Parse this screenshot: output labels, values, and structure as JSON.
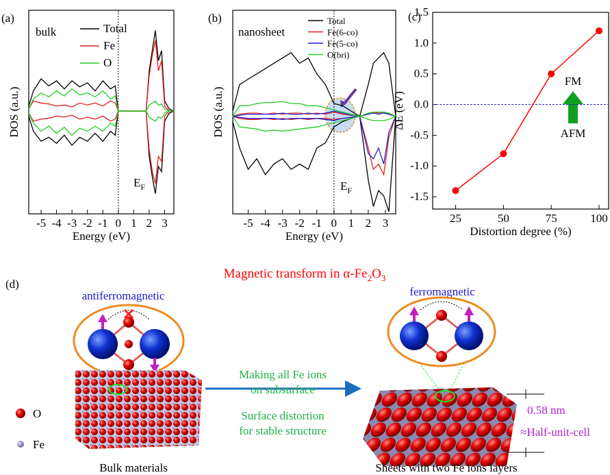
{
  "chart_data": [
    {
      "type": "dos",
      "panel_label": "(a)",
      "annotation": "bulk",
      "x_label": "Energy (eV)",
      "y_label": "DOS (a.u.)",
      "fermi_label": "E",
      "fermi_sub": "F",
      "fermi_level": 0,
      "legend": "upper center",
      "xlim": [
        -5.8,
        3.6
      ],
      "ylim": [
        -1.02,
        1.0
      ],
      "xticks": [
        -5,
        -4,
        -3,
        -2,
        -1,
        0,
        1,
        2,
        3
      ],
      "x": [
        -5.8,
        -5.5,
        -5,
        -4.5,
        -4,
        -3.5,
        -3,
        -2.5,
        -2,
        -1.5,
        -1,
        -0.5,
        -0.2,
        0,
        1,
        1.8,
        2,
        2.2,
        2.4,
        2.6,
        2.8,
        3,
        3.3,
        3.6
      ],
      "series": [
        {
          "name": "Total",
          "color": "#000000",
          "values": [
            0.05,
            0.2,
            0.32,
            0.25,
            0.3,
            0.22,
            0.3,
            0.24,
            0.28,
            0.2,
            0.3,
            0.22,
            0.25,
            0,
            0,
            0,
            0.4,
            0.6,
            0.8,
            0.5,
            0.6,
            0.1,
            0.02,
            0
          ],
          "values_down": [
            -0.05,
            -0.2,
            -0.3,
            -0.26,
            -0.32,
            -0.24,
            -0.34,
            -0.26,
            -0.3,
            -0.22,
            -0.3,
            -0.2,
            -0.24,
            0,
            0,
            0,
            -0.45,
            -0.65,
            -0.82,
            -0.55,
            -0.6,
            -0.1,
            -0.02,
            0
          ]
        },
        {
          "name": "Fe",
          "color": "#e02020",
          "values": [
            0.02,
            0.1,
            0.08,
            0.07,
            0.05,
            0.06,
            0.04,
            0.08,
            0.06,
            0.08,
            0.05,
            0.1,
            0.08,
            0,
            0,
            0,
            0.35,
            0.55,
            0.7,
            0.4,
            0.5,
            0.05,
            0,
            0
          ],
          "values_down": [
            -0.02,
            -0.1,
            -0.08,
            -0.07,
            -0.05,
            -0.06,
            -0.04,
            -0.08,
            -0.06,
            -0.08,
            -0.05,
            -0.1,
            -0.08,
            0,
            0,
            0,
            -0.38,
            -0.6,
            -0.72,
            -0.45,
            -0.5,
            -0.05,
            0,
            0
          ]
        },
        {
          "name": "O",
          "color": "#22cc22",
          "values": [
            0.02,
            0.12,
            0.18,
            0.14,
            0.2,
            0.15,
            0.22,
            0.16,
            0.18,
            0.14,
            0.2,
            0.12,
            0.15,
            0,
            0,
            0,
            0.06,
            0.08,
            0.1,
            0.06,
            0.07,
            0.02,
            0,
            0
          ],
          "values_down": [
            -0.02,
            -0.12,
            -0.2,
            -0.15,
            -0.22,
            -0.16,
            -0.24,
            -0.17,
            -0.2,
            -0.15,
            -0.2,
            -0.12,
            -0.15,
            0,
            0,
            0,
            -0.06,
            -0.08,
            -0.1,
            -0.06,
            -0.07,
            -0.02,
            0,
            0
          ]
        }
      ]
    },
    {
      "type": "dos",
      "panel_label": "(b)",
      "annotation": "nanosheet",
      "x_label": "Energy (eV)",
      "y_label": "DOS (a.u.)",
      "fermi_label": "E",
      "fermi_sub": "F",
      "fermi_level": 0,
      "legend": "upper right",
      "xlim": [
        -5.9,
        3.6
      ],
      "ylim": [
        -0.92,
        1.0
      ],
      "xticks": [
        -5,
        -4,
        -3,
        -2,
        -1,
        0,
        1,
        2,
        3
      ],
      "x": [
        -5.9,
        -5.5,
        -5,
        -4.5,
        -4,
        -3.5,
        -3,
        -2.5,
        -2,
        -1.5,
        -1,
        -0.5,
        0,
        0.5,
        1,
        1.5,
        2,
        2.3,
        2.6,
        2.9,
        3.2,
        3.6
      ],
      "series": [
        {
          "name": "Total",
          "color": "#000000",
          "values": [
            0.05,
            0.3,
            0.35,
            0.4,
            0.45,
            0.5,
            0.55,
            0.6,
            0.5,
            0.55,
            0.4,
            0.3,
            0.12,
            0.1,
            0.05,
            0,
            0.3,
            0.5,
            0.55,
            0.6,
            0.5,
            0
          ],
          "values_down": [
            -0.05,
            -0.3,
            -0.5,
            -0.4,
            -0.55,
            -0.45,
            -0.4,
            -0.5,
            -0.45,
            -0.5,
            -0.3,
            -0.25,
            -0.1,
            -0.05,
            -0.02,
            0,
            -0.6,
            -0.85,
            -0.7,
            -0.75,
            -0.9,
            0
          ]
        },
        {
          "name": "Fe(6-co)",
          "color": "#e02020",
          "values": [
            0,
            0.02,
            0.03,
            0.03,
            0.02,
            0.03,
            0.02,
            0.03,
            0.03,
            0.02,
            0.03,
            0.02,
            0.04,
            0.02,
            0.01,
            0,
            0.03,
            0.04,
            0.03,
            0.04,
            0.02,
            0
          ],
          "values_down": [
            0,
            -0.02,
            -0.03,
            -0.03,
            -0.02,
            -0.03,
            -0.02,
            -0.03,
            -0.02,
            -0.03,
            -0.02,
            -0.02,
            -0.03,
            -0.02,
            -0.01,
            0,
            -0.3,
            -0.5,
            -0.45,
            -0.55,
            -0.2,
            0
          ]
        },
        {
          "name": "Fe(5-co)",
          "color": "#2020d0",
          "values": [
            0,
            0.01,
            0.02,
            0.02,
            0.02,
            0.02,
            0.03,
            0.02,
            0.02,
            0.03,
            0.02,
            0.03,
            0.05,
            0.03,
            0.01,
            0,
            0.02,
            0.03,
            0.02,
            0.03,
            0.02,
            0
          ],
          "values_down": [
            0,
            -0.01,
            -0.02,
            -0.02,
            -0.02,
            -0.02,
            -0.03,
            -0.02,
            -0.02,
            -0.02,
            -0.02,
            -0.03,
            -0.04,
            -0.02,
            -0.01,
            0,
            -0.35,
            -0.4,
            -0.3,
            -0.45,
            -0.15,
            0
          ]
        },
        {
          "name": "O(bri)",
          "color": "#22cc22",
          "values": [
            0,
            0.1,
            0.1,
            0.12,
            0.13,
            0.13,
            0.14,
            0.12,
            0.12,
            0.1,
            0.1,
            0.08,
            0.06,
            0.04,
            0.02,
            0,
            0.03,
            0.04,
            0.04,
            0.04,
            0.03,
            0
          ],
          "values_down": [
            0,
            -0.1,
            -0.11,
            -0.12,
            -0.14,
            -0.13,
            -0.14,
            -0.13,
            -0.12,
            -0.11,
            -0.1,
            -0.08,
            -0.06,
            -0.04,
            -0.02,
            0,
            -0.03,
            -0.04,
            -0.04,
            -0.04,
            -0.03,
            0
          ]
        }
      ]
    },
    {
      "type": "line",
      "panel_label": "(c)",
      "x_label": "Distortion degree (%)",
      "y_label": "ΔE (eV)",
      "color": "#ff0000",
      "annotations": [
        "FM",
        "AFM"
      ],
      "reference_line": 0,
      "xlim": [
        13,
        105
      ],
      "ylim": [
        -1.7,
        1.5
      ],
      "xticks": [
        25,
        50,
        75,
        100
      ],
      "yticks": [
        1.5,
        {
          "value": 1.0,
          "label": "1.0"
        },
        0.5,
        {
          "value": 0.0,
          "label": "0.0"
        },
        -0.5,
        {
          "value": -1.0,
          "label": "-1.0"
        },
        -1.5
      ],
      "x": [
        25,
        50,
        75,
        100
      ],
      "values": [
        -1.4,
        -0.8,
        0.5,
        1.2
      ]
    }
  ],
  "diagram": {
    "panel_label": "(d)",
    "title": {
      "main": "Magnetic transform in α-Fe",
      "sub1": "2",
      "mid": "O",
      "sub2": "3"
    },
    "left_state": "antiferromagnetic",
    "right_state": "ferromagnetic",
    "process": [
      "Making all Fe ions",
      "on subsurface",
      "Surface distortion",
      "for stable structure"
    ],
    "legend": [
      "O",
      "Fe"
    ],
    "thickness": "0.58 nm",
    "thickness_note": "≈Half-unit-cell",
    "captions": [
      "Bulk materials",
      "Sheets with two Fe ions layers"
    ]
  }
}
